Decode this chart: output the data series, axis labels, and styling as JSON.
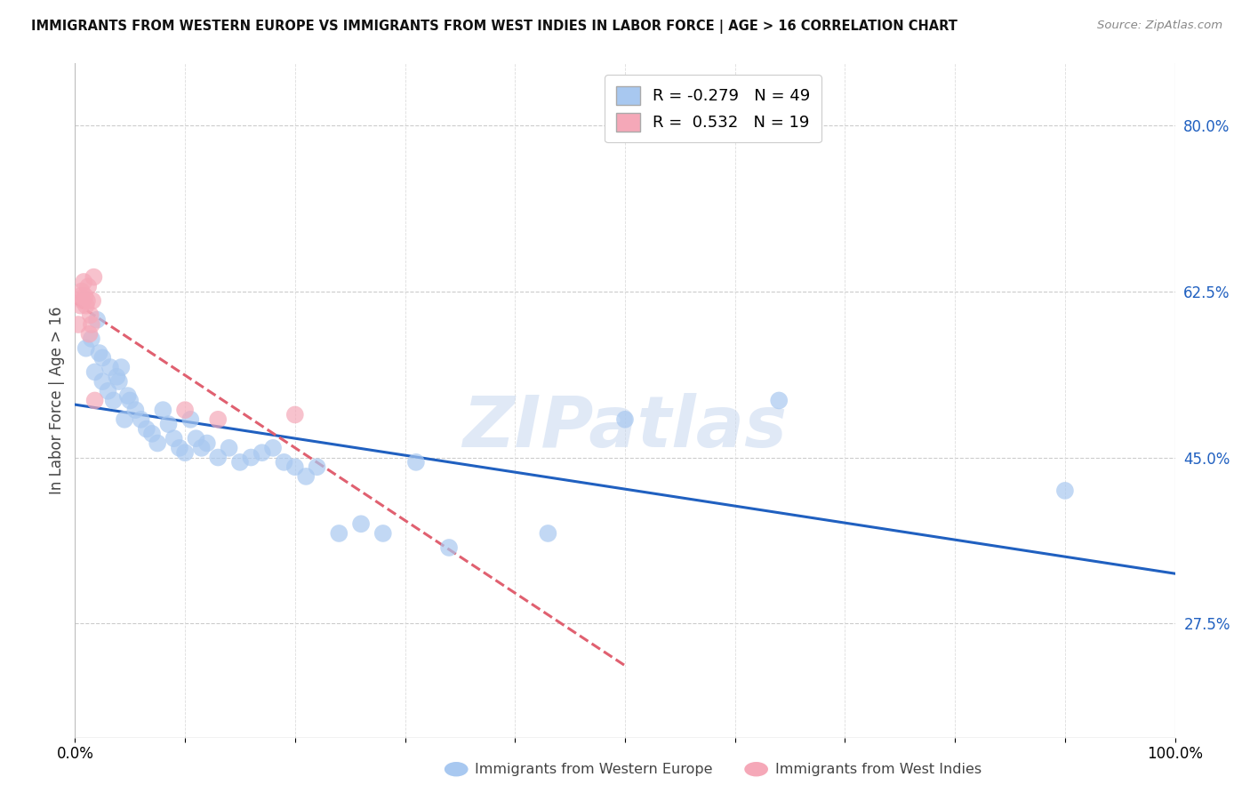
{
  "title": "IMMIGRANTS FROM WESTERN EUROPE VS IMMIGRANTS FROM WEST INDIES IN LABOR FORCE | AGE > 16 CORRELATION CHART",
  "source": "Source: ZipAtlas.com",
  "ylabel": "In Labor Force | Age > 16",
  "xlim": [
    0.0,
    1.0
  ],
  "ylim": [
    0.155,
    0.865
  ],
  "x_ticks": [
    0.0,
    0.1,
    0.2,
    0.3,
    0.4,
    0.5,
    0.6,
    0.7,
    0.8,
    0.9,
    1.0
  ],
  "x_tick_labels": [
    "0.0%",
    "",
    "",
    "",
    "",
    "",
    "",
    "",
    "",
    "",
    "100.0%"
  ],
  "y_tick_labels_right": [
    "27.5%",
    "45.0%",
    "62.5%",
    "80.0%"
  ],
  "y_ticks_right": [
    0.275,
    0.45,
    0.625,
    0.8
  ],
  "r_blue": -0.279,
  "n_blue": 49,
  "r_pink": 0.532,
  "n_pink": 19,
  "blue_color": "#a8c8f0",
  "pink_color": "#f5a8b8",
  "line_blue_color": "#2060c0",
  "line_pink_color": "#e06070",
  "watermark": "ZIPatlas",
  "blue_points_x": [
    0.01,
    0.015,
    0.018,
    0.02,
    0.022,
    0.025,
    0.025,
    0.03,
    0.032,
    0.035,
    0.038,
    0.04,
    0.042,
    0.045,
    0.048,
    0.05,
    0.055,
    0.06,
    0.065,
    0.07,
    0.075,
    0.08,
    0.085,
    0.09,
    0.095,
    0.1,
    0.105,
    0.11,
    0.115,
    0.12,
    0.13,
    0.14,
    0.15,
    0.16,
    0.17,
    0.18,
    0.19,
    0.2,
    0.21,
    0.22,
    0.24,
    0.26,
    0.28,
    0.31,
    0.34,
    0.43,
    0.5,
    0.64,
    0.9
  ],
  "blue_points_y": [
    0.565,
    0.575,
    0.54,
    0.595,
    0.56,
    0.53,
    0.555,
    0.52,
    0.545,
    0.51,
    0.535,
    0.53,
    0.545,
    0.49,
    0.515,
    0.51,
    0.5,
    0.49,
    0.48,
    0.475,
    0.465,
    0.5,
    0.485,
    0.47,
    0.46,
    0.455,
    0.49,
    0.47,
    0.46,
    0.465,
    0.45,
    0.46,
    0.445,
    0.45,
    0.455,
    0.46,
    0.445,
    0.44,
    0.43,
    0.44,
    0.37,
    0.38,
    0.37,
    0.445,
    0.355,
    0.37,
    0.49,
    0.51,
    0.415
  ],
  "pink_points_x": [
    0.003,
    0.005,
    0.005,
    0.006,
    0.007,
    0.008,
    0.009,
    0.01,
    0.011,
    0.012,
    0.013,
    0.014,
    0.015,
    0.016,
    0.017,
    0.018,
    0.1,
    0.13,
    0.2
  ],
  "pink_points_y": [
    0.59,
    0.62,
    0.61,
    0.625,
    0.615,
    0.635,
    0.62,
    0.61,
    0.615,
    0.63,
    0.58,
    0.6,
    0.59,
    0.615,
    0.64,
    0.51,
    0.5,
    0.49,
    0.495
  ]
}
